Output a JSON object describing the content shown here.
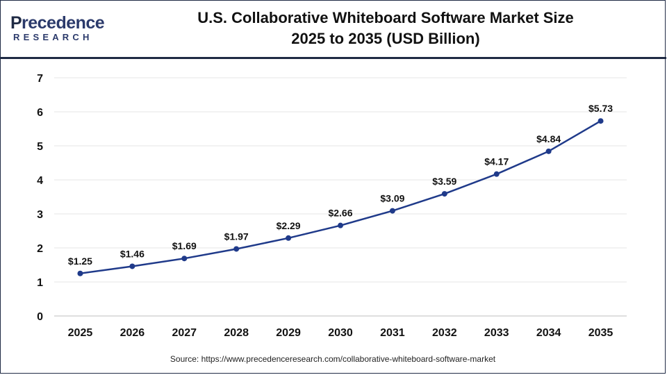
{
  "header": {
    "logo_text_top": "recedence",
    "logo_letter": "P",
    "logo_text_bottom": "RESEARCH",
    "title_line1": "U.S. Collaborative Whiteboard Software Market Size",
    "title_line2": "2025 to 2035 (USD Billion)"
  },
  "chart_data": {
    "type": "line",
    "title": "U.S. Collaborative Whiteboard Software Market Size 2025 to 2035 (USD Billion)",
    "xlabel": "",
    "ylabel": "",
    "categories": [
      "2025",
      "2026",
      "2027",
      "2028",
      "2029",
      "2030",
      "2031",
      "2032",
      "2033",
      "2034",
      "2035"
    ],
    "series": [
      {
        "values": [
          1.25,
          1.46,
          1.69,
          1.97,
          2.29,
          2.66,
          3.09,
          3.59,
          4.17,
          4.84,
          5.73
        ],
        "labels": [
          "$1.25",
          "$1.46",
          "$1.69",
          "$1.97",
          "$2.29",
          "$2.66",
          "$3.09",
          "$3.59",
          "$4.17",
          "$4.84",
          "$5.73"
        ],
        "color": "#1f3a8a"
      }
    ],
    "ylim": [
      0,
      7
    ],
    "yticks": [
      "0",
      "1",
      "2",
      "3",
      "4",
      "5",
      "6",
      "7"
    ],
    "grid": true,
    "legend": "none"
  },
  "footer": {
    "source": "Source: https://www.precedenceresearch.com/collaborative-whiteboard-software-market"
  }
}
